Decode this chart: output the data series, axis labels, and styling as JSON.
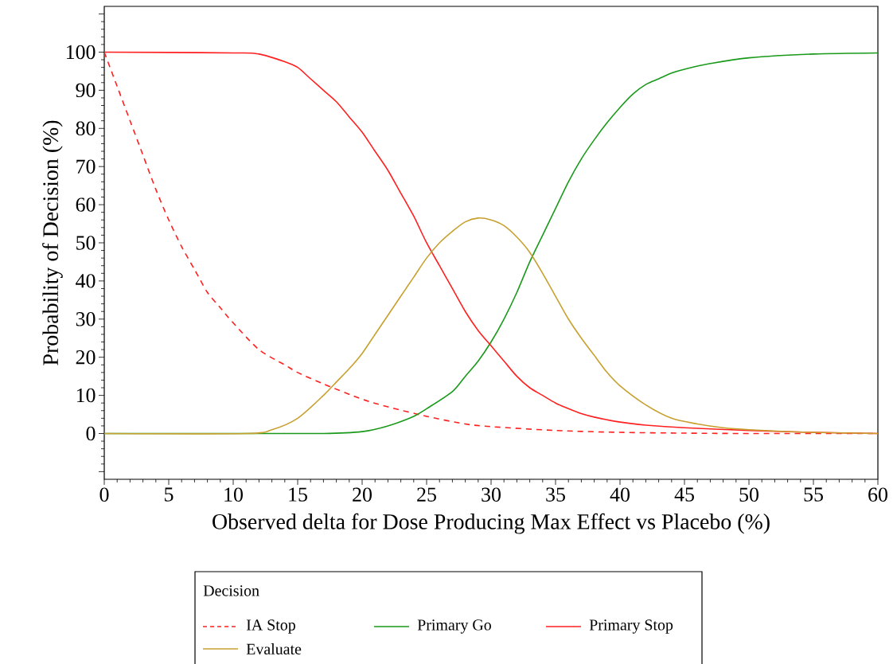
{
  "chart_data": {
    "type": "line",
    "xlabel": "Observed delta for Dose Producing Max Effect vs Placebo (%)",
    "ylabel": "Probability of Decision (%)",
    "legend_title": "Decision",
    "legend": "bottom",
    "grid": false,
    "marker": "none",
    "xlim": [
      0,
      60
    ],
    "ylim": [
      -12,
      112
    ],
    "xticks": [
      0,
      5,
      10,
      15,
      20,
      25,
      30,
      35,
      40,
      45,
      50,
      55,
      60
    ],
    "yticks": [
      {
        "value": -10,
        "label": null
      },
      0,
      10,
      20,
      30,
      40,
      50,
      60,
      70,
      80,
      90,
      100,
      {
        "value": 110,
        "label": null
      }
    ],
    "series": [
      {
        "name": "IA Stop",
        "color": "#ff2020",
        "line_style": "dashed",
        "x": [
          0,
          1,
          2,
          3,
          4,
          5,
          6,
          7,
          8,
          9,
          10,
          12,
          14,
          15,
          17,
          20,
          22,
          25,
          28,
          30,
          35,
          40,
          45,
          50,
          60
        ],
        "values": [
          100,
          91,
          82,
          73,
          64,
          56,
          49,
          43,
          37,
          33,
          29,
          22,
          18,
          16,
          13,
          9,
          7,
          4.5,
          2.5,
          1.8,
          0.8,
          0.3,
          0.1,
          0,
          0
        ]
      },
      {
        "name": "Primary Go",
        "color": "#1a9a1a",
        "line_style": "solid",
        "x": [
          0,
          10,
          17,
          20,
          22,
          24,
          25,
          27,
          28,
          29,
          30,
          31,
          32,
          33,
          34,
          35,
          36,
          37,
          38,
          39,
          40,
          41,
          42,
          43,
          44,
          45,
          47,
          50,
          55,
          60
        ],
        "values": [
          0,
          0,
          0,
          0.5,
          2,
          4.5,
          6.5,
          11,
          15,
          19,
          24,
          30,
          37,
          45,
          52,
          59,
          66,
          72,
          77,
          81.5,
          85.5,
          89,
          91.5,
          93,
          94.5,
          95.5,
          97,
          98.5,
          99.5,
          99.8
        ]
      },
      {
        "name": "Primary Stop",
        "color": "#ff2020",
        "line_style": "solid",
        "x": [
          0,
          10,
          12,
          14,
          15,
          16,
          17,
          18,
          19,
          20,
          21,
          22,
          23,
          24,
          25,
          26,
          27,
          28,
          29,
          30,
          31,
          32,
          33,
          34,
          35,
          36,
          37,
          38,
          40,
          42,
          45,
          50,
          55,
          60
        ],
        "values": [
          100,
          99.8,
          99.5,
          97.5,
          96,
          93,
          90,
          87,
          83,
          79,
          74,
          69,
          63,
          57,
          50,
          44,
          38,
          32,
          27,
          23,
          19,
          15,
          12,
          10,
          8,
          6.5,
          5.2,
          4.3,
          3,
          2.2,
          1.5,
          0.8,
          0.3,
          0
        ]
      },
      {
        "name": "Evaluate",
        "color": "#c8a030",
        "line_style": "solid",
        "x": [
          0,
          11,
          13,
          15,
          17,
          18,
          19,
          20,
          21,
          22,
          23,
          24,
          25,
          26,
          27,
          28,
          29,
          30,
          31,
          32,
          33,
          34,
          35,
          36,
          37,
          38,
          39,
          40,
          42,
          44,
          46,
          48,
          50,
          55,
          60
        ],
        "values": [
          0,
          0,
          1,
          4,
          10,
          13.5,
          17,
          21,
          26,
          31,
          36,
          41,
          46,
          50,
          53,
          55.5,
          56.5,
          56,
          54.5,
          51.5,
          47.5,
          42,
          36,
          30,
          25,
          20.5,
          16,
          12.5,
          7.5,
          4,
          2.5,
          1.5,
          1,
          0.3,
          0
        ]
      }
    ]
  }
}
